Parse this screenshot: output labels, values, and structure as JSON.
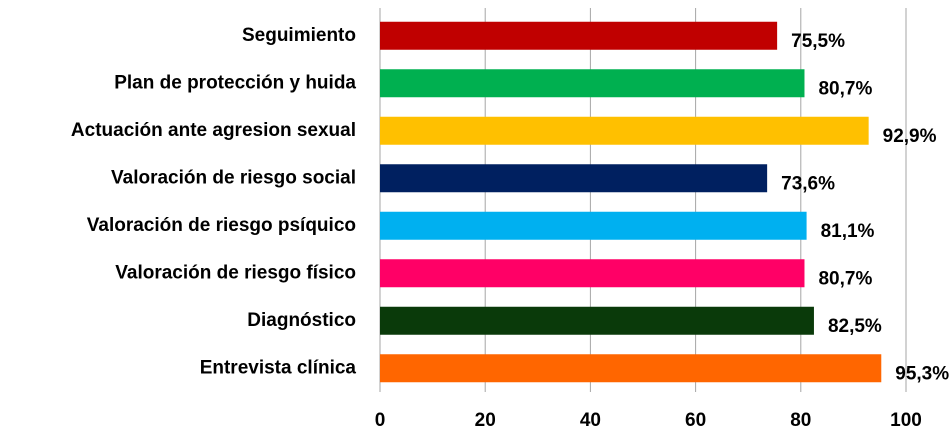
{
  "chart_data": {
    "type": "bar",
    "orientation": "horizontal",
    "categories": [
      "Seguimiento",
      "Plan de protección y huida",
      "Actuación ante agresion sexual",
      "Valoración de riesgo social",
      "Valoración de riesgo psíquico",
      "Valoración de riesgo físico",
      "Diagnóstico",
      "Entrevista clínica"
    ],
    "values": [
      75.5,
      80.7,
      92.9,
      73.6,
      81.1,
      80.7,
      82.5,
      95.3
    ],
    "value_labels": [
      "75,5%",
      "80,7%",
      "92,9%",
      "73,6%",
      "81,1%",
      "80,7%",
      "82,5%",
      "95,3%"
    ],
    "colors": [
      "#c00000",
      "#00b050",
      "#ffc000",
      "#002060",
      "#00b0f0",
      "#ff0066",
      "#0a3a0a",
      "#ff6600"
    ],
    "xlim": [
      0,
      100
    ],
    "xticks": [
      0,
      20,
      40,
      60,
      80,
      100
    ],
    "grid": true
  }
}
